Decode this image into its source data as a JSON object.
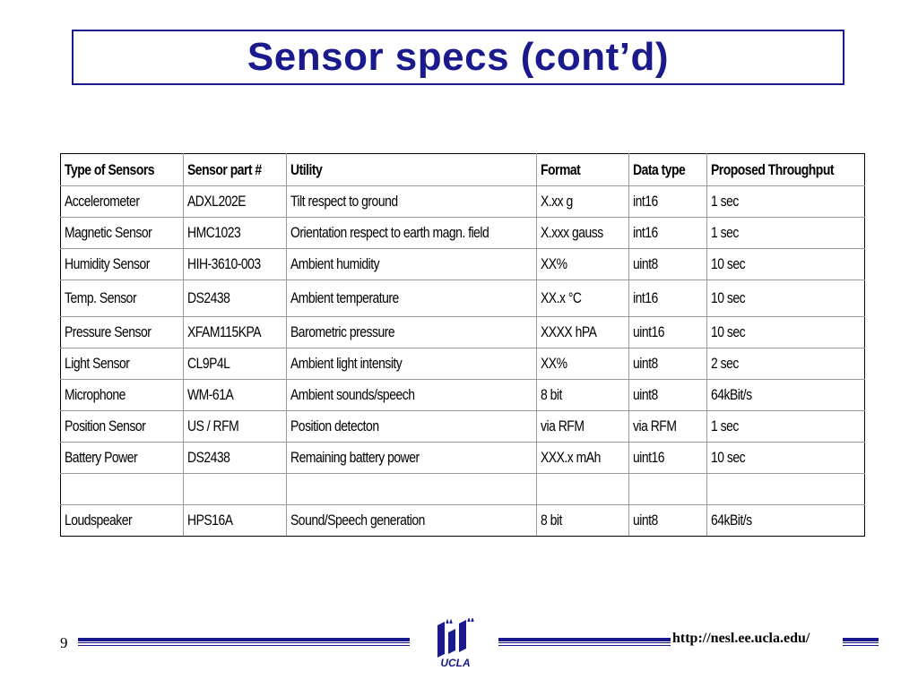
{
  "slide": {
    "title": "Sensor specs (cont’d)",
    "page_number": "9",
    "url": "http://nesl.ee.ucla.edu/",
    "logo_text": "UCLA",
    "accent_color": "#1a1a8c"
  },
  "table": {
    "headers": [
      "Type of Sensors",
      "Sensor part #",
      "Utility",
      "Format",
      "Data type",
      "Proposed Throughput"
    ],
    "rows": [
      [
        "Accelerometer",
        "ADXL202E",
        "Tilt respect to ground",
        "X.xx g",
        "int16",
        "1 sec"
      ],
      [
        "Magnetic Sensor",
        "HMC1023",
        "Orientation respect to earth magn. field",
        "X.xxx gauss",
        "int16",
        "1 sec"
      ],
      [
        "Humidity Sensor",
        "HIH-3610-003",
        "Ambient humidity",
        "XX%",
        "uint8",
        "10 sec"
      ],
      [
        "Temp. Sensor",
        "DS2438",
        "Ambient temperature",
        "XX.x °C",
        "int16",
        "10 sec"
      ],
      [
        "Pressure Sensor",
        "XFAM115KPA",
        "Barometric pressure",
        "XXXX hPA",
        "uint16",
        "10 sec"
      ],
      [
        "Light Sensor",
        "CL9P4L",
        "Ambient light intensity",
        "XX%",
        "uint8",
        "2 sec"
      ],
      [
        "Microphone",
        "WM-61A",
        "Ambient sounds/speech",
        "8 bit",
        "uint8",
        "64kBit/s"
      ],
      [
        "Position Sensor",
        "US / RFM",
        "Position detecton",
        "via RFM",
        "via RFM",
        "1 sec"
      ],
      [
        "Battery Power",
        "DS2438",
        "Remaining battery power",
        "XXX.x mAh",
        "uint16",
        "10 sec"
      ],
      [
        "",
        "",
        "",
        "",
        "",
        ""
      ],
      [
        "Loudspeaker",
        "HPS16A",
        "Sound/Speech generation",
        "8 bit",
        "uint8",
        "64kBit/s"
      ]
    ]
  }
}
